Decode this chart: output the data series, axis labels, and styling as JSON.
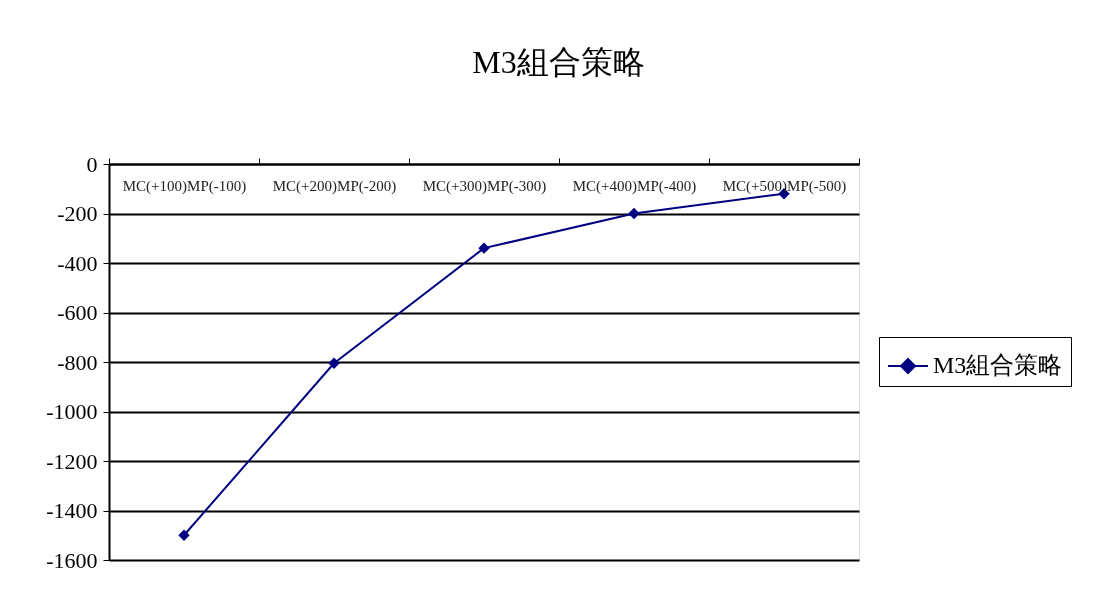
{
  "chart_data": {
    "type": "line",
    "title": "M3組合策略",
    "categories": [
      "MC(+100)MP(-100)",
      "MC(+200)MP(-200)",
      "MC(+300)MP(-300)",
      "MC(+400)MP(-400)",
      "MC(+500)MP(-500)"
    ],
    "series": [
      {
        "name": "M3組合策略",
        "color": "#000080",
        "values": [
          -1500,
          -805,
          -340,
          -200,
          -120
        ]
      }
    ],
    "ylim": [
      -1600,
      0
    ],
    "yticks": [
      -1600,
      -1400,
      -1200,
      -1000,
      -800,
      -600,
      -400,
      -200,
      0
    ],
    "grid": "y",
    "legend": "right",
    "marker": "diamond",
    "line_style": "solid"
  }
}
